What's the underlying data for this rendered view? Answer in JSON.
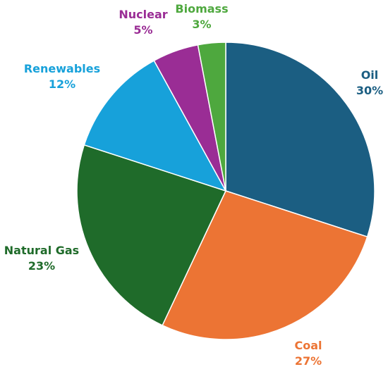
{
  "chart_data": {
    "type": "pie",
    "title": "",
    "slices": [
      {
        "label": "Oil",
        "value": 30,
        "value_label": "30%",
        "color": "#1b5e82"
      },
      {
        "label": "Coal",
        "value": 27,
        "value_label": "27%",
        "color": "#ec7434"
      },
      {
        "label": "Natural Gas",
        "value": 23,
        "value_label": "23%",
        "color": "#1f6b2a"
      },
      {
        "label": "Renewables",
        "value": 12,
        "value_label": "12%",
        "color": "#17a1da"
      },
      {
        "label": "Nuclear",
        "value": 5,
        "value_label": "5%",
        "color": "#9a2d95"
      },
      {
        "label": "Biomass",
        "value": 3,
        "value_label": "3%",
        "color": "#4ea83e"
      }
    ],
    "start_angle_deg": 0,
    "direction": "clockwise",
    "legend": "none"
  }
}
